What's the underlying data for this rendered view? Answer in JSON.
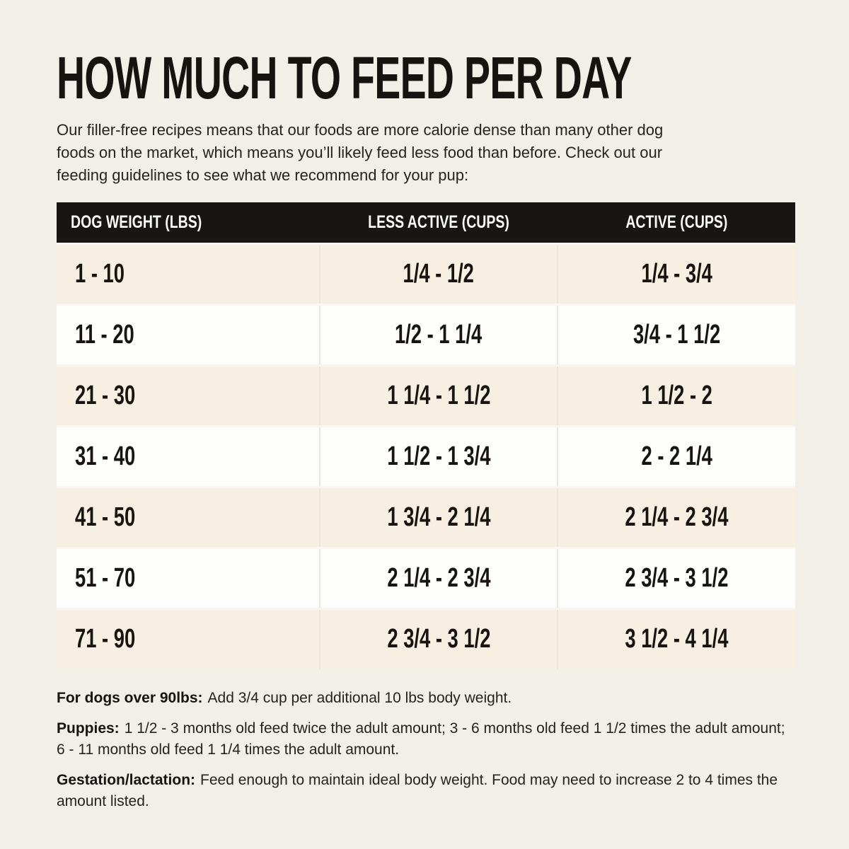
{
  "page": {
    "title": "HOW MUCH TO FEED PER DAY",
    "intro_lines": [
      "Our filler-free recipes means that our foods are more calorie dense than many other dog",
      "foods on the market, which means you’ll likely feed less food than before. Check out our",
      "feeding guidelines to see what we recommend for your pup:"
    ]
  },
  "chart_data": {
    "type": "table",
    "title": "HOW MUCH TO FEED PER DAY",
    "columns": [
      "DOG WEIGHT (LBS)",
      "LESS ACTIVE (CUPS)",
      "ACTIVE (CUPS)"
    ],
    "rows": [
      [
        "1 - 10",
        "1/4 - 1/2",
        "1/4 - 3/4"
      ],
      [
        "11 - 20",
        "1/2 - 1 1/4",
        "3/4 - 1 1/2"
      ],
      [
        "21 - 30",
        "1 1/4 - 1 1/2",
        "1 1/2 - 2"
      ],
      [
        "31 - 40",
        "1 1/2 - 1 3/4",
        "2 - 2 1/4"
      ],
      [
        "41 - 50",
        "1 3/4 - 2 1/4",
        "2 1/4 - 2 3/4"
      ],
      [
        "51 - 70",
        "2 1/4 - 2 3/4",
        "2 3/4 - 3 1/2"
      ],
      [
        "71 - 90",
        "2 3/4 - 3 1/2",
        "3 1/2 - 4 1/4"
      ]
    ],
    "layout": {
      "header_style": "black-band",
      "row_striping": [
        "cream",
        "white"
      ]
    }
  },
  "notes": [
    {
      "label": "For dogs over 90lbs:",
      "text": "Add 3/4 cup per additional 10 lbs body weight."
    },
    {
      "label": "Puppies:",
      "text": "1 1/2 - 3 months old feed twice the adult amount; 3 - 6 months old feed 1 1/2 times the adult amount; 6 - 11 months old feed 1 1/4 times the adult amount."
    },
    {
      "label": "Gestation/lactation:",
      "text": "Feed enough to maintain ideal body weight. Food may need to increase 2 to 4 times the amount listed."
    }
  ],
  "colors": {
    "page_background": "#f1efe8",
    "header_background": "#191512",
    "header_text": "#fbfaf8",
    "row_cream": "#f7f0e2",
    "row_white": "#fdfdfb",
    "text": "#171412"
  }
}
